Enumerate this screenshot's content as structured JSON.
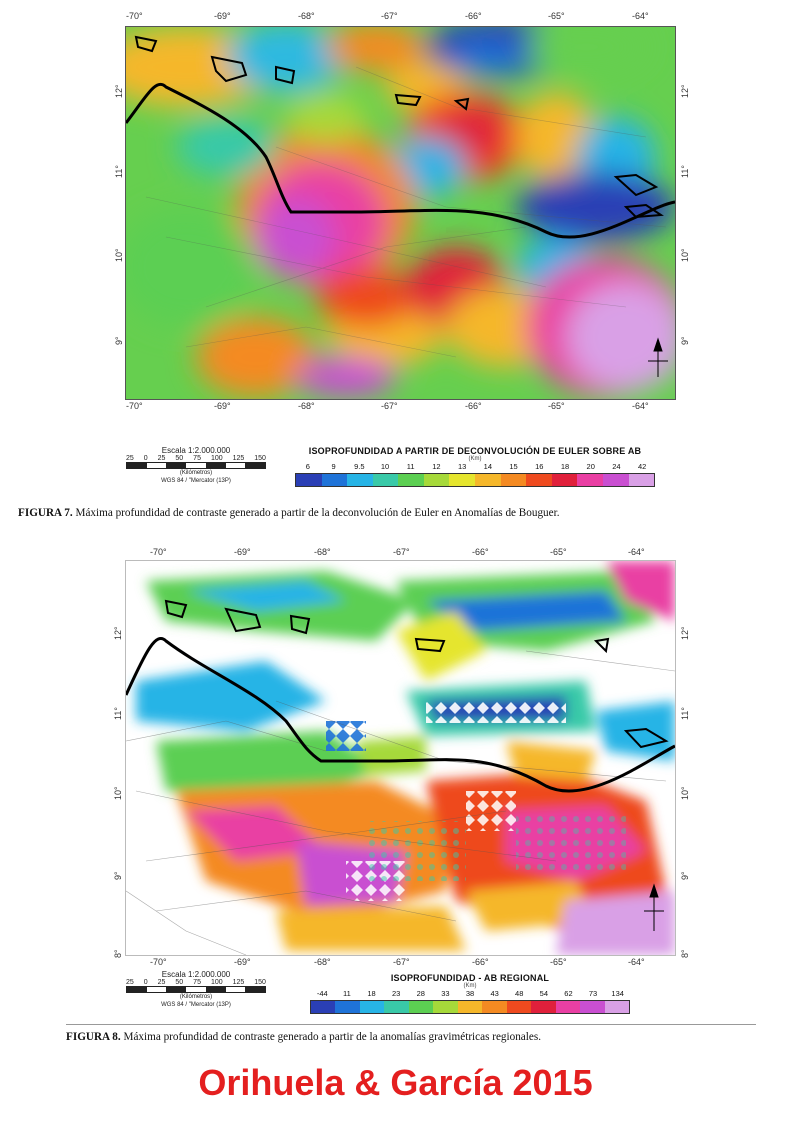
{
  "figure7": {
    "lon_ticks": [
      "-70°",
      "-69°",
      "-68°",
      "-67°",
      "-66°",
      "-65°",
      "-64°"
    ],
    "lat_ticks": [
      "12°",
      "11°",
      "10°",
      "9°"
    ],
    "scale": {
      "title": "Escala 1:2.000.000",
      "ticks": [
        "25",
        "0",
        "25",
        "50",
        "75",
        "100",
        "125",
        "150"
      ],
      "unit": "(Kilómetros)",
      "datum": "WGS 84 / \"Mercator (13P)"
    },
    "legend": {
      "title": "ISOPROFUNDIDAD A PARTIR DE DECONVOLUCIÓN DE EULER SOBRE AB",
      "unit": "(Km)",
      "labels": [
        "6",
        "9",
        "9.5",
        "10",
        "11",
        "12",
        "13",
        "14",
        "15",
        "16",
        "18",
        "20",
        "24",
        "42"
      ]
    },
    "caption_label": "FIGURA 7.",
    "caption_text": " Máxima profundidad de contraste generado a partir de la deconvolución de Euler en Anomalías de Bouguer."
  },
  "figure8": {
    "lon_ticks": [
      "-70°",
      "-69°",
      "-68°",
      "-67°",
      "-66°",
      "-65°",
      "-64°"
    ],
    "lat_ticks": [
      "12°",
      "11°",
      "10°",
      "9°",
      "8°"
    ],
    "scale": {
      "title": "Escala 1:2.000.000",
      "ticks": [
        "25",
        "0",
        "25",
        "50",
        "75",
        "100",
        "125",
        "150"
      ],
      "unit": "(Kilómetros)",
      "datum": "WGS 84 / \"Mercator (13P)"
    },
    "legend": {
      "title": "ISOPROFUNDIDAD - AB REGIONAL",
      "unit": "(Km)",
      "labels": [
        "-44",
        "11",
        "18",
        "23",
        "28",
        "33",
        "38",
        "43",
        "48",
        "54",
        "62",
        "73",
        "134"
      ]
    },
    "caption_label": "FIGURA 8.",
    "caption_text": " Máxima profundidad de contraste generado a partir de la anomalías gravimétricas regionales."
  },
  "footer": "Orihuela & García 2015",
  "colors": {
    "footer": "#e41f1f",
    "palette": [
      "#2a3fb5",
      "#1f73d8",
      "#27b4e6",
      "#39c9a8",
      "#5ccf52",
      "#a6d93a",
      "#e5e52e",
      "#f5b72a",
      "#f48a22",
      "#ee4a1f",
      "#e0203b",
      "#e93fa3",
      "#c94fd1",
      "#d9a0e6"
    ]
  }
}
